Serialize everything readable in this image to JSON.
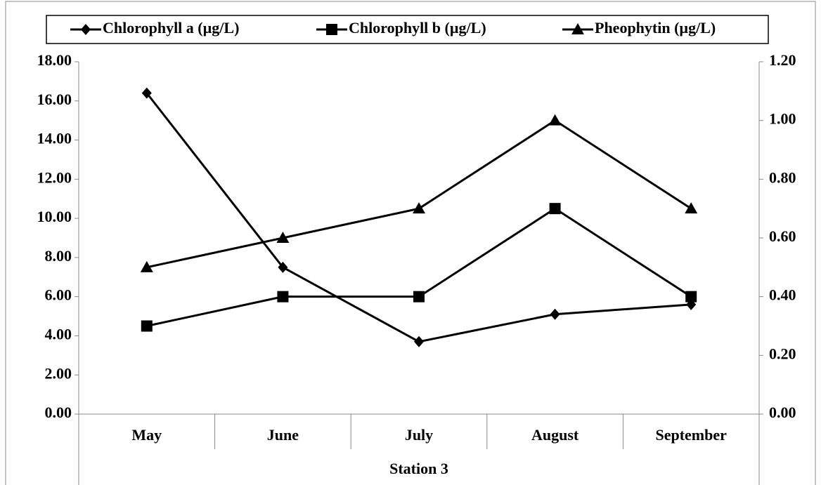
{
  "chart_data": {
    "type": "line",
    "xlabel": "Station 3",
    "categories": [
      "May",
      "June",
      "July",
      "August",
      "September"
    ],
    "series": [
      {
        "name": "Chlorophyll a (µg/L)",
        "color": "#000000",
        "marker": "diamond",
        "values": [
          16.4,
          7.5,
          3.7,
          5.1,
          5.6
        ]
      },
      {
        "name": "Chlorophyll b (µg/L)",
        "color": "#000000",
        "marker": "square",
        "axis": "y2",
        "values": [
          0.3,
          0.4,
          0.4,
          0.7,
          0.4
        ]
      },
      {
        "name": "Pheophytin (µg/L)",
        "color": "#000000",
        "marker": "triangle",
        "axis": "y2",
        "values": [
          0.5,
          0.6,
          0.7,
          1.0,
          0.7
        ]
      }
    ],
    "ylim": [
      0,
      18
    ],
    "yticks": [
      {
        "value": 0,
        "label": "0.00"
      },
      {
        "value": 2,
        "label": "2.00"
      },
      {
        "value": 4,
        "label": "4.00"
      },
      {
        "value": 6,
        "label": "6.00"
      },
      {
        "value": 8,
        "label": "8.00"
      },
      {
        "value": 10,
        "label": "10.00"
      },
      {
        "value": 12,
        "label": "12.00"
      },
      {
        "value": 14,
        "label": "14.00"
      },
      {
        "value": 16,
        "label": "16.00"
      },
      {
        "value": 18,
        "label": "18.00"
      }
    ],
    "y2lim": [
      0,
      1.2
    ],
    "y2ticks": [
      {
        "value": 0,
        "label": "0.00"
      },
      {
        "value": 0.2,
        "label": "0.20"
      },
      {
        "value": 0.4,
        "label": "0.40"
      },
      {
        "value": 0.6,
        "label": "0.60"
      },
      {
        "value": 0.8,
        "label": "0.80"
      },
      {
        "value": 1.0,
        "label": "1.00"
      },
      {
        "value": 1.2,
        "label": "1.20"
      }
    ],
    "legend": "top"
  }
}
